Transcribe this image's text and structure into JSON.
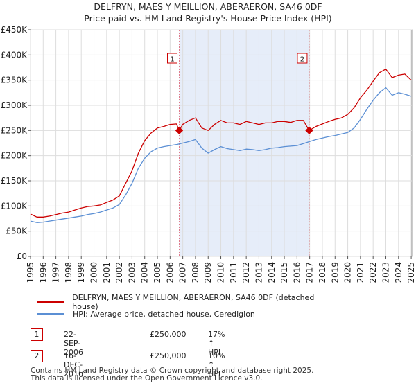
{
  "colors": {
    "property_line": "#cc0000",
    "hpi_line": "#5b8fd4",
    "shade": "#e6edf9",
    "marker_line": "#e07a8a",
    "grid": "#dddddd"
  },
  "legend": {
    "property_label": "DELFRYN, MAES Y MEILLION, ABERAERON, SA46 0DF (detached house)",
    "hpi_label": "HPI: Average price, detached house, Ceredigion"
  },
  "sales": [
    {
      "num": "1",
      "date": "22-SEP-2006",
      "price": "£250,000",
      "hpi_change": "17% ↑ HPI"
    },
    {
      "num": "2",
      "date": "16-DEC-2016",
      "price": "£250,000",
      "hpi_change": "10% ↑ HPI"
    }
  ],
  "footer": {
    "line1": "Contains HM Land Registry data © Crown copyright and database right 2025.",
    "line2": "This data is licensed under the Open Government Licence v3.0."
  },
  "chart_data": {
    "type": "line",
    "title": "DELFRYN, MAES Y MEILLION, ABERAERON, SA46 0DF",
    "subtitle": "Price paid vs. HM Land Registry's House Price Index (HPI)",
    "xlim": [
      1995,
      2025.05
    ],
    "ylim": [
      0,
      450000
    ],
    "y_ticks": [
      0,
      50000,
      100000,
      150000,
      200000,
      250000,
      300000,
      350000,
      400000,
      450000
    ],
    "y_tick_labels": [
      "£0",
      "£50K",
      "£100K",
      "£150K",
      "£200K",
      "£250K",
      "£300K",
      "£350K",
      "£400K",
      "£450K"
    ],
    "x_ticks": [
      1995,
      1996,
      1997,
      1998,
      1999,
      2000,
      2001,
      2002,
      2003,
      2004,
      2005,
      2006,
      2007,
      2008,
      2009,
      2010,
      2011,
      2012,
      2013,
      2014,
      2015,
      2016,
      2017,
      2018,
      2019,
      2020,
      2021,
      2022,
      2023,
      2024,
      2025
    ],
    "x_tick_labels": [
      "1995",
      "1996",
      "1997",
      "1998",
      "1999",
      "2000",
      "2001",
      "2002",
      "2003",
      "2004",
      "2005",
      "2006",
      "2007",
      "2008",
      "2009",
      "2010",
      "2011",
      "2012",
      "2013",
      "2014",
      "2015",
      "2016",
      "2017",
      "2018",
      "2019",
      "2020",
      "2021",
      "2022",
      "2023",
      "2024",
      "2025"
    ],
    "shaded_region": [
      2006.72,
      2016.96
    ],
    "sale_markers": [
      {
        "label": "1",
        "x": 2006.72,
        "y": 250000
      },
      {
        "label": "2",
        "x": 2016.96,
        "y": 250000
      }
    ],
    "series": [
      {
        "name": "DELFRYN, MAES Y MEILLION, ABERAERON, SA46 0DF (detached house)",
        "x": [
          1995.0,
          1995.5,
          1996.0,
          1996.5,
          1997.0,
          1997.5,
          1998.0,
          1998.5,
          1999.0,
          1999.5,
          2000.0,
          2000.5,
          2001.0,
          2001.5,
          2002.0,
          2002.5,
          2003.0,
          2003.5,
          2004.0,
          2004.5,
          2005.0,
          2005.5,
          2006.0,
          2006.5,
          2006.72,
          2007.0,
          2007.5,
          2008.0,
          2008.5,
          2009.0,
          2009.5,
          2010.0,
          2010.5,
          2011.0,
          2011.5,
          2012.0,
          2012.5,
          2013.0,
          2013.5,
          2014.0,
          2014.5,
          2015.0,
          2015.5,
          2016.0,
          2016.5,
          2016.96,
          2017.5,
          2018.0,
          2018.5,
          2019.0,
          2019.5,
          2020.0,
          2020.5,
          2021.0,
          2021.5,
          2022.0,
          2022.5,
          2023.0,
          2023.5,
          2024.0,
          2024.5,
          2025.0
        ],
        "y": [
          84000,
          78000,
          78000,
          80000,
          83000,
          86000,
          88000,
          92000,
          96000,
          99000,
          100000,
          102000,
          107000,
          112000,
          120000,
          145000,
          170000,
          205000,
          230000,
          245000,
          255000,
          258000,
          262000,
          263000,
          250000,
          262000,
          270000,
          275000,
          255000,
          250000,
          262000,
          270000,
          265000,
          265000,
          262000,
          268000,
          265000,
          262000,
          265000,
          265000,
          268000,
          268000,
          266000,
          270000,
          270000,
          250000,
          258000,
          263000,
          268000,
          272000,
          275000,
          282000,
          295000,
          315000,
          330000,
          348000,
          365000,
          372000,
          355000,
          360000,
          362000,
          350000
        ]
      },
      {
        "name": "HPI: Average price, detached house, Ceredigion",
        "x": [
          1995.0,
          1995.5,
          1996.0,
          1996.5,
          1997.0,
          1997.5,
          1998.0,
          1998.5,
          1999.0,
          1999.5,
          2000.0,
          2000.5,
          2001.0,
          2001.5,
          2002.0,
          2002.5,
          2003.0,
          2003.5,
          2004.0,
          2004.5,
          2005.0,
          2005.5,
          2006.0,
          2006.5,
          2007.0,
          2007.5,
          2008.0,
          2008.5,
          2009.0,
          2009.5,
          2010.0,
          2010.5,
          2011.0,
          2011.5,
          2012.0,
          2012.5,
          2013.0,
          2013.5,
          2014.0,
          2014.5,
          2015.0,
          2015.5,
          2016.0,
          2016.5,
          2017.0,
          2017.5,
          2018.0,
          2018.5,
          2019.0,
          2019.5,
          2020.0,
          2020.5,
          2021.0,
          2021.5,
          2022.0,
          2022.5,
          2023.0,
          2023.5,
          2024.0,
          2024.5,
          2025.0
        ],
        "y": [
          70000,
          67000,
          68000,
          70000,
          72000,
          74000,
          76000,
          78000,
          80000,
          83000,
          85000,
          88000,
          92000,
          96000,
          103000,
          122000,
          145000,
          175000,
          195000,
          208000,
          215000,
          218000,
          220000,
          222000,
          225000,
          228000,
          232000,
          215000,
          205000,
          212000,
          218000,
          214000,
          212000,
          210000,
          213000,
          212000,
          210000,
          212000,
          215000,
          216000,
          218000,
          219000,
          220000,
          224000,
          228000,
          232000,
          235000,
          238000,
          240000,
          243000,
          246000,
          255000,
          272000,
          292000,
          310000,
          325000,
          335000,
          320000,
          325000,
          322000,
          318000
        ]
      }
    ]
  }
}
